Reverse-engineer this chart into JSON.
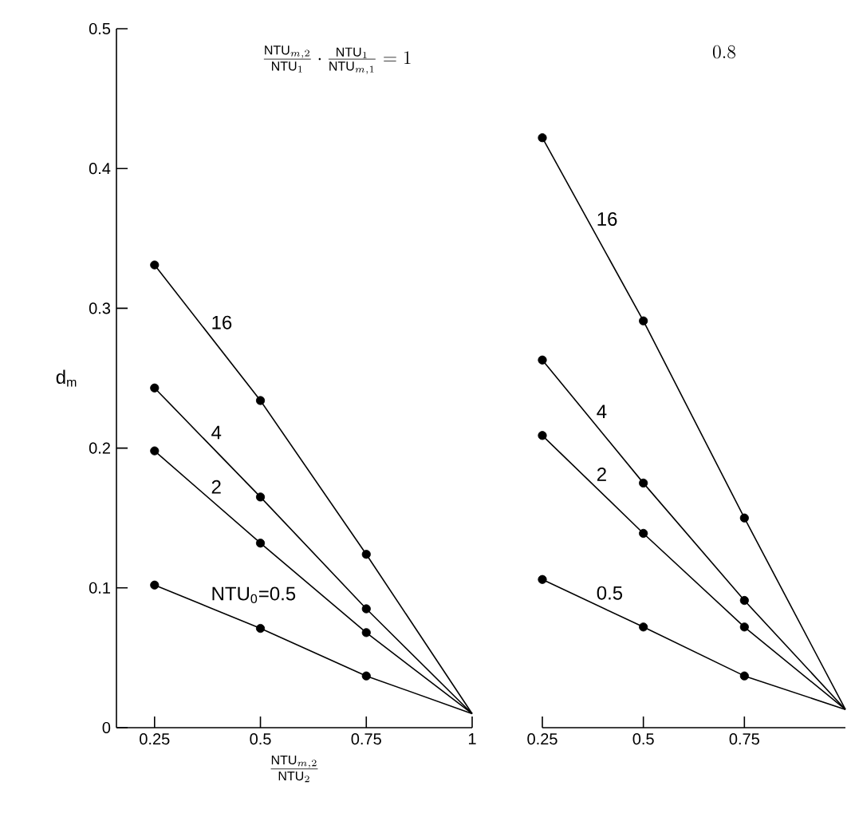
{
  "chart_data": [
    {
      "type": "line",
      "title": "\\frac{\\mathrm{NTU}_{m,2}}{\\mathrm{NTU}_{1}}\\cdot\\frac{\\mathrm{NTU}_{1}}{\\mathrm{NTU}_{m,1}}=1",
      "xlabel": "\\frac{\\mathrm{NTU}_{m,2}}{\\mathrm{NTU}_{2}}",
      "ylabel": "d$_{m}$",
      "x": [
        0.25,
        0.5,
        0.75,
        1
      ],
      "xlim": [
        0.16,
        1
      ],
      "ylim": [
        0,
        0.5
      ],
      "xticks": [
        0.25,
        0.5,
        0.75,
        1
      ],
      "yticks": [
        0,
        0.1,
        0.2,
        0.3,
        0.4,
        0.5
      ],
      "marker": "circle",
      "line_style": "solid",
      "grid": false,
      "series": [
        {
          "name": "NTU$_{0}$=0.5",
          "color": "#000000",
          "values": [
            0.102,
            0.071,
            0.037,
            0.01
          ]
        },
        {
          "name": "2",
          "color": "#000000",
          "values": [
            0.198,
            0.132,
            0.068,
            0.01
          ]
        },
        {
          "name": "4",
          "color": "#000000",
          "values": [
            0.243,
            0.165,
            0.085,
            0.01
          ]
        },
        {
          "name": "16",
          "color": "#000000",
          "values": [
            0.331,
            0.234,
            0.124,
            0.01
          ]
        }
      ]
    },
    {
      "type": "line",
      "title": "0.8",
      "x": [
        0.25,
        0.5,
        0.75,
        1
      ],
      "xlim": [
        0.25,
        1
      ],
      "ylim": [
        0,
        0.5
      ],
      "xticks": [
        0.25,
        0.5,
        0.75
      ],
      "yticks": [
        0,
        0.1,
        0.2,
        0.3,
        0.4,
        0.5
      ],
      "tick_labels": "x",
      "marker": "circle",
      "line_style": "solid",
      "grid": false,
      "series": [
        {
          "name": "0.5",
          "color": "#000000",
          "values": [
            0.106,
            0.072,
            0.037,
            0.013
          ]
        },
        {
          "name": "2",
          "color": "#000000",
          "values": [
            0.209,
            0.139,
            0.072,
            0.013
          ]
        },
        {
          "name": "4",
          "color": "#000000",
          "values": [
            0.263,
            0.175,
            0.091,
            0.013
          ]
        },
        {
          "name": "16",
          "color": "#000000",
          "values": [
            0.422,
            0.291,
            0.15,
            0.013
          ]
        }
      ]
    }
  ]
}
